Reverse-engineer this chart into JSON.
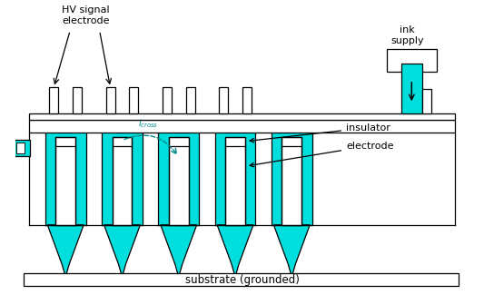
{
  "fig_width": 5.33,
  "fig_height": 3.25,
  "dpi": 100,
  "bg": "#ffffff",
  "cyan": "#00dede",
  "black": "#000000",
  "white": "#ffffff",
  "sub_label": "substrate (grounded)",
  "hv_label": "HV signal\nelectrode",
  "ink_label": "ink\nsupply",
  "ins_label": "insulator",
  "elec_label": "electrode",
  "xlim": [
    0,
    10
  ],
  "ylim": [
    0,
    6.5
  ]
}
